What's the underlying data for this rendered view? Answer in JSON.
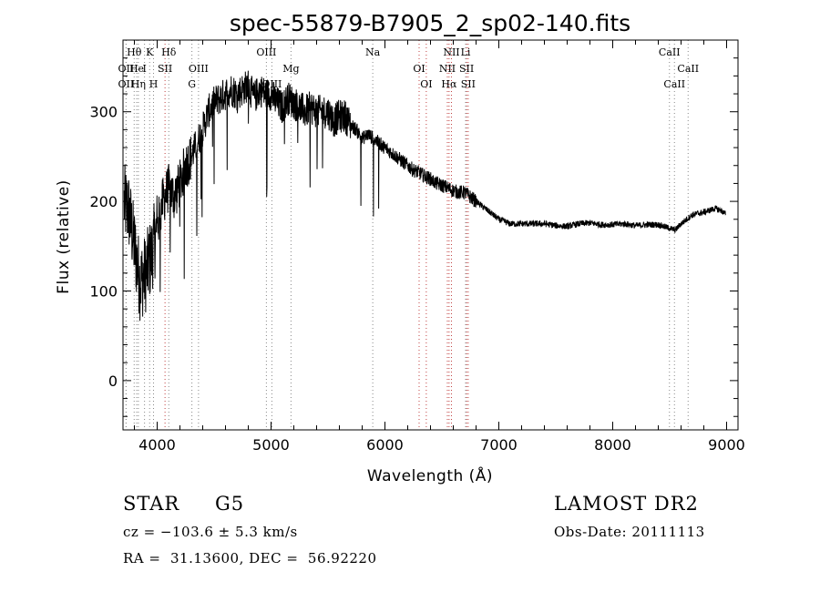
{
  "chart_data": {
    "type": "line",
    "title": "spec-55879-B7905_2_sp02-140.fits",
    "xlabel": "Wavelength (Å)",
    "ylabel": "Flux (relative)",
    "xlim": [
      3700,
      9100
    ],
    "ylim": [
      -55,
      380
    ],
    "xticks": [
      4000,
      5000,
      6000,
      7000,
      8000,
      9000
    ],
    "yticks": [
      0,
      100,
      200,
      300
    ],
    "grid": false,
    "series": [
      {
        "x": [
          3700,
          3750,
          3800,
          3850,
          3900,
          3950,
          4000,
          4050,
          4100,
          4150,
          4200,
          4250,
          4300,
          4350,
          4400,
          4450,
          4500,
          4550,
          4600,
          4650,
          4700,
          4750,
          4800,
          4850,
          4900,
          4950,
          5000,
          5050,
          5100,
          5150,
          5200,
          5250,
          5300,
          5350,
          5400,
          5450,
          5500,
          5550,
          5600,
          5650,
          5700,
          5750,
          5800,
          5850,
          5900,
          5950,
          6000,
          6050,
          6100,
          6150,
          6200,
          6250,
          6300,
          6350,
          6400,
          6450,
          6500,
          6550,
          6600,
          6650,
          6700,
          6750,
          6800,
          6850,
          6900,
          6950,
          7000,
          7100,
          7200,
          7300,
          7400,
          7500,
          7600,
          7700,
          7800,
          7900,
          8000,
          8100,
          8200,
          8300,
          8400,
          8500,
          8550,
          8600,
          8650,
          8700,
          8800,
          8900,
          8950,
          9000
        ],
        "y": [
          200,
          190,
          150,
          110,
          120,
          140,
          170,
          200,
          215,
          205,
          220,
          240,
          250,
          265,
          280,
          300,
          310,
          315,
          320,
          325,
          320,
          325,
          330,
          315,
          325,
          320,
          320,
          310,
          305,
          315,
          310,
          305,
          300,
          305,
          300,
          300,
          300,
          290,
          295,
          295,
          285,
          280,
          270,
          275,
          270,
          265,
          260,
          255,
          250,
          245,
          240,
          235,
          232,
          228,
          225,
          220,
          218,
          215,
          212,
          210,
          210,
          205,
          200,
          195,
          190,
          185,
          180,
          175,
          175,
          175,
          175,
          173,
          172,
          175,
          176,
          174,
          174,
          175,
          173,
          174,
          174,
          170,
          168,
          175,
          180,
          185,
          188,
          192,
          190,
          185
        ]
      }
    ],
    "spectral_lines": [
      {
        "label": "Hθ",
        "wavelength": 3798,
        "row": 1
      },
      {
        "label": "K",
        "wavelength": 3934,
        "row": 1
      },
      {
        "label": "Hδ",
        "wavelength": 4102,
        "row": 1
      },
      {
        "label": "OIII",
        "wavelength": 4363,
        "row": 2
      },
      {
        "label": "OIII",
        "wavelength": 4959,
        "row": 1
      },
      {
        "label": "Mg",
        "wavelength": 5175,
        "row": 2
      },
      {
        "label": "Na",
        "wavelength": 5893,
        "row": 1
      },
      {
        "label": "NII",
        "wavelength": 6584,
        "row": 1
      },
      {
        "label": "Li",
        "wavelength": 6708,
        "row": 1
      },
      {
        "label": "CaII",
        "wavelength": 8498,
        "row": 1
      },
      {
        "label": "OII",
        "wavelength": 3727,
        "row": 2
      },
      {
        "label": "He",
        "wavelength": 3820,
        "row": 2
      },
      {
        "label": "I",
        "wavelength": 3889,
        "row": 2
      },
      {
        "label": "SII",
        "wavelength": 4069,
        "row": 2
      },
      {
        "label": "OI",
        "wavelength": 6300,
        "row": 2
      },
      {
        "label": "NII",
        "wavelength": 6548,
        "row": 2
      },
      {
        "label": "SII",
        "wavelength": 6717,
        "row": 2
      },
      {
        "label": "CaII",
        "wavelength": 8662,
        "row": 2
      },
      {
        "label": "OII",
        "wavelength": 3727,
        "row": 3
      },
      {
        "label": "Hη",
        "wavelength": 3835,
        "row": 3
      },
      {
        "label": "H",
        "wavelength": 3968,
        "row": 3
      },
      {
        "label": "G",
        "wavelength": 4305,
        "row": 3
      },
      {
        "label": "OIII",
        "wavelength": 5007,
        "row": 3
      },
      {
        "label": "OI",
        "wavelength": 6363,
        "row": 3
      },
      {
        "label": "Hα",
        "wavelength": 6563,
        "row": 3
      },
      {
        "label": "SII",
        "wavelength": 6731,
        "row": 3
      },
      {
        "label": "CaII",
        "wavelength": 8542,
        "row": 3
      }
    ]
  },
  "info": {
    "class": "STAR",
    "subclass": "G5",
    "survey": "LAMOST DR2",
    "cz": "cz = −103.6 ± 5.3 km/s",
    "obs_date": "Obs-Date: 20111113",
    "coords": "RA =  31.13600, DEC =  56.92220"
  }
}
